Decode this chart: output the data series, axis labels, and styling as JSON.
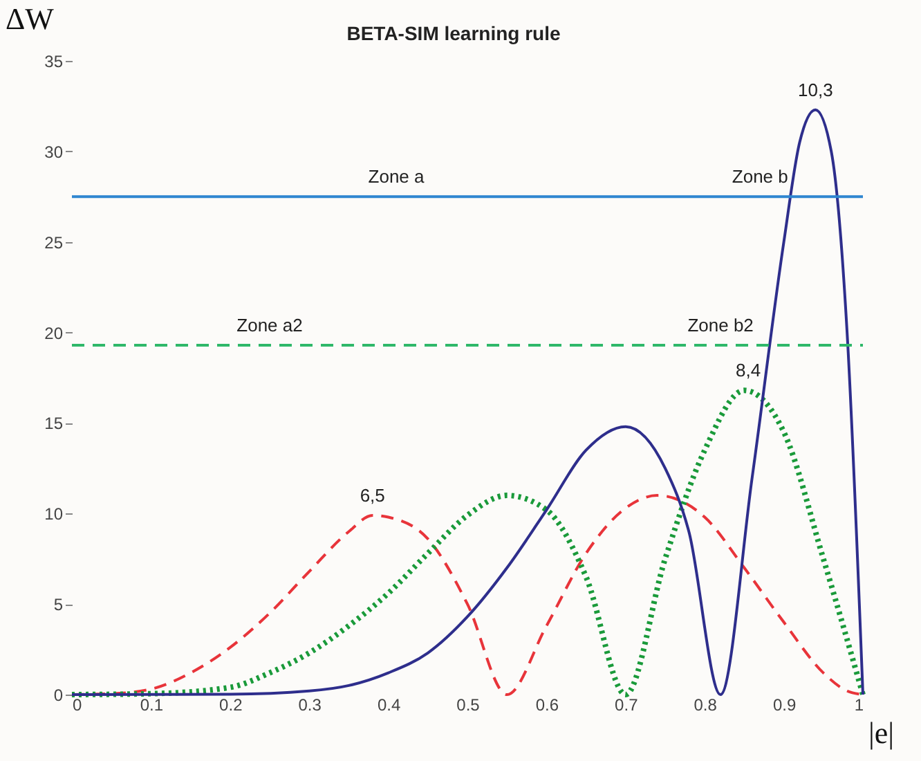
{
  "chart_data": {
    "type": "line",
    "title": "BETA-SIM learning rule",
    "xlabel": "|e|",
    "ylabel": "ΔW",
    "xlim": [
      0,
      1
    ],
    "xticks": [
      0,
      0.1,
      0.2,
      0.3,
      0.4,
      0.5,
      0.6,
      0.7,
      0.8,
      0.9,
      1
    ],
    "ylim": [
      0,
      35
    ],
    "yticks": [
      0,
      5,
      10,
      15,
      20,
      25,
      30,
      35
    ],
    "grid": false,
    "marker": "none",
    "series": [
      {
        "color": "#e8343a",
        "line_style": "dashed",
        "x": [
          0,
          0.05,
          0.1,
          0.15,
          0.2,
          0.25,
          0.3,
          0.35,
          0.38,
          0.4,
          0.45,
          0.5,
          0.55,
          0.6,
          0.65,
          0.7,
          0.74,
          0.8,
          0.85,
          0.9,
          0.95,
          0.98,
          1
        ],
        "values": [
          0,
          0.05,
          0.3,
          1.2,
          2.6,
          4.5,
          6.8,
          9.0,
          9.9,
          9.8,
          8.6,
          5.0,
          0,
          3.8,
          7.8,
          10.3,
          11,
          9.8,
          7.0,
          4.0,
          1.2,
          0.2,
          0
        ]
      },
      {
        "color": "#1a9a3a",
        "line_style": "dotted",
        "x": [
          0,
          0.1,
          0.2,
          0.25,
          0.3,
          0.35,
          0.4,
          0.45,
          0.5,
          0.55,
          0.6,
          0.65,
          0.7,
          0.75,
          0.8,
          0.85,
          0.9,
          0.95,
          1
        ],
        "values": [
          0,
          0.05,
          0.4,
          1.2,
          2.3,
          3.8,
          5.6,
          7.8,
          9.9,
          11,
          10.2,
          6.5,
          0,
          7.5,
          13.5,
          16.8,
          14.5,
          7.5,
          0
        ]
      },
      {
        "color": "#2e2e8c",
        "line_style": "solid",
        "x": [
          0,
          0.2,
          0.3,
          0.35,
          0.4,
          0.45,
          0.5,
          0.55,
          0.6,
          0.65,
          0.7,
          0.75,
          0.78,
          0.82,
          0.86,
          0.9,
          0.92,
          0.94,
          0.96,
          0.98,
          1
        ],
        "values": [
          0,
          0.02,
          0.2,
          0.5,
          1.2,
          2.3,
          4.3,
          7.0,
          10.2,
          13.5,
          14.8,
          12.5,
          9.0,
          0,
          12,
          25,
          30.5,
          32.3,
          30,
          20,
          0
        ]
      },
      {
        "color": "#2f86d0",
        "line_style": "solid",
        "x": [
          0,
          0.82,
          1
        ],
        "values": [
          27.5,
          27.5,
          27.5
        ]
      },
      {
        "color": "#2fb86a",
        "line_style": "dashed",
        "x": [
          0,
          0.7,
          1
        ],
        "values": [
          19.3,
          19.3,
          19.3
        ]
      }
    ],
    "annotations": [
      {
        "text": "10,3",
        "x": 0.94,
        "y": 32.3
      },
      {
        "text": "8,4",
        "x": 0.855,
        "y": 16.8
      },
      {
        "text": "6,5",
        "x": 0.38,
        "y": 9.9
      },
      {
        "text": "Zone a",
        "x": 0.41,
        "y": 27.5
      },
      {
        "text": "Zone b",
        "x": 0.87,
        "y": 27.5
      },
      {
        "text": "Zone a2",
        "x": 0.25,
        "y": 19.3
      },
      {
        "text": "Zone b2",
        "x": 0.82,
        "y": 19.3
      }
    ]
  }
}
